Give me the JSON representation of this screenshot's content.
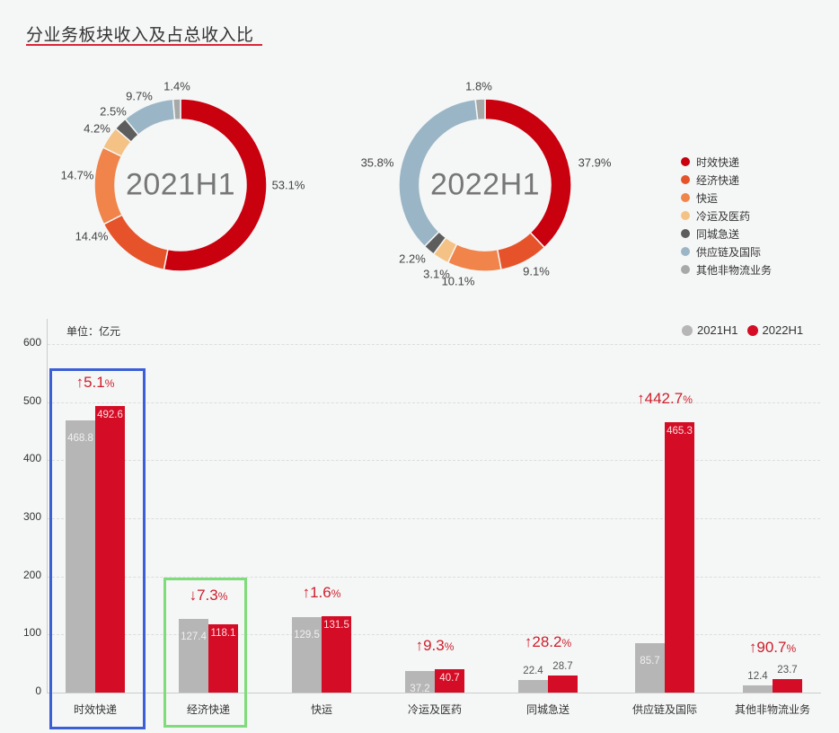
{
  "title": "分业务板块收入及占总收入比",
  "colors": {
    "accent": "#d9263a",
    "bar_2021": "#b5b6b5",
    "bar_2022": "#d50c25",
    "highlight_blue": "#3b5fd6",
    "highlight_green": "#7fdc7a"
  },
  "legend": {
    "items": [
      {
        "label": "时效快递",
        "color": "#c9000e"
      },
      {
        "label": "经济快递",
        "color": "#e6532a"
      },
      {
        "label": "快运",
        "color": "#f0844a"
      },
      {
        "label": "冷运及医药",
        "color": "#f4c285"
      },
      {
        "label": "同城急送",
        "color": "#5d5d5d"
      },
      {
        "label": "供应链及国际",
        "color": "#9ab6c6"
      },
      {
        "label": "其他非物流业务",
        "color": "#a7a8a8"
      }
    ]
  },
  "bar_legend": {
    "label_2021": "2021H1",
    "label_2022": "2022H1"
  },
  "unit_label": "单位：亿元",
  "chart_data": [
    {
      "type": "pie",
      "title": "2021H1",
      "style": "donut",
      "categories": [
        "时效快递",
        "经济快递",
        "快运",
        "冷运及医药",
        "同城急送",
        "供应链及国际",
        "其他非物流业务"
      ],
      "values": [
        53.1,
        14.4,
        14.7,
        4.2,
        2.5,
        9.7,
        1.4
      ],
      "labels": [
        "53.1%",
        "14.4%",
        "14.7%",
        "4.2%",
        "2.5%",
        "9.7%",
        "1.4%"
      ]
    },
    {
      "type": "pie",
      "title": "2022H1",
      "style": "donut",
      "categories": [
        "时效快递",
        "经济快递",
        "快运",
        "冷运及医药",
        "同城急送",
        "供应链及国际",
        "其他非物流业务"
      ],
      "values": [
        37.9,
        9.1,
        10.1,
        3.1,
        2.2,
        35.8,
        1.8
      ],
      "labels": [
        "37.9%",
        "9.1%",
        "10.1%",
        "3.1%",
        "2.2%",
        "35.8%",
        "1.8%"
      ]
    },
    {
      "type": "bar",
      "title": "",
      "ylabel": "单位：亿元",
      "xlabel": "",
      "ylim": [
        0,
        600
      ],
      "yticks": [
        0,
        100,
        200,
        300,
        400,
        500,
        600
      ],
      "grid": true,
      "legend_position": "top-right",
      "categories": [
        "时效快递",
        "经济快递",
        "快运",
        "冷运及医药",
        "同城急送",
        "供应链及国际",
        "其他非物流业务"
      ],
      "series": [
        {
          "name": "2021H1",
          "values": [
            468.8,
            127.4,
            129.5,
            37.2,
            22.4,
            85.7,
            12.4
          ]
        },
        {
          "name": "2022H1",
          "values": [
            492.6,
            118.1,
            131.5,
            40.7,
            28.7,
            465.3,
            23.7
          ]
        }
      ],
      "annotations": [
        {
          "category": "时效快递",
          "direction": "up",
          "arrow": "↑",
          "value": "5.1",
          "unit": "%"
        },
        {
          "category": "经济快递",
          "direction": "down",
          "arrow": "↓",
          "value": "7.3",
          "unit": "%"
        },
        {
          "category": "快运",
          "direction": "up",
          "arrow": "↑",
          "value": "1.6",
          "unit": "%"
        },
        {
          "category": "冷运及医药",
          "direction": "up",
          "arrow": "↑",
          "value": "9.3",
          "unit": "%"
        },
        {
          "category": "同城急送",
          "direction": "up",
          "arrow": "↑",
          "value": "28.2",
          "unit": "%"
        },
        {
          "category": "供应链及国际",
          "direction": "up",
          "arrow": "↑",
          "value": "442.7",
          "unit": "%"
        },
        {
          "category": "其他非物流业务",
          "direction": "up",
          "arrow": "↑",
          "value": "90.7",
          "unit": "%"
        }
      ]
    }
  ]
}
